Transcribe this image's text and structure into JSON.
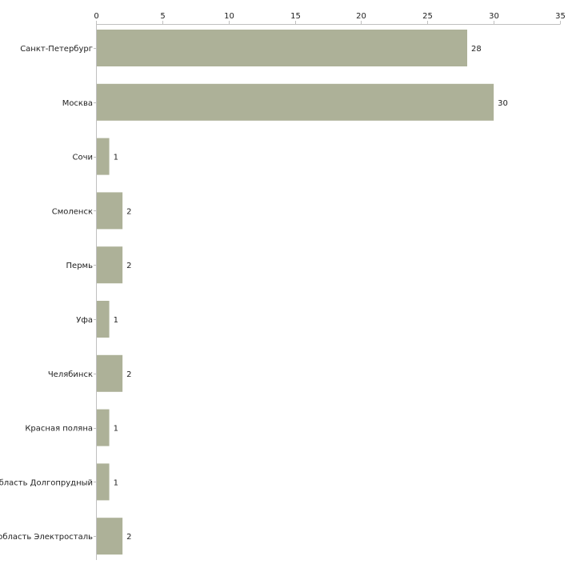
{
  "chart_data": {
    "type": "bar",
    "orientation": "horizontal",
    "title": "",
    "xlabel": "",
    "ylabel": "",
    "xlim": [
      0,
      35
    ],
    "x_ticks": [
      0,
      5,
      10,
      15,
      20,
      25,
      30,
      35
    ],
    "grid": false,
    "legend": "none",
    "bar_color": "#adb198",
    "categories": [
      "Санкт-Петербург",
      "Москва",
      "Сочи",
      "Смоленск",
      "Пермь",
      "Уфа",
      "Челябинск",
      "Красная поляна",
      "область Долгопрудный",
      "область Электросталь"
    ],
    "values": [
      28,
      30,
      1,
      2,
      2,
      1,
      2,
      1,
      1,
      2
    ]
  }
}
